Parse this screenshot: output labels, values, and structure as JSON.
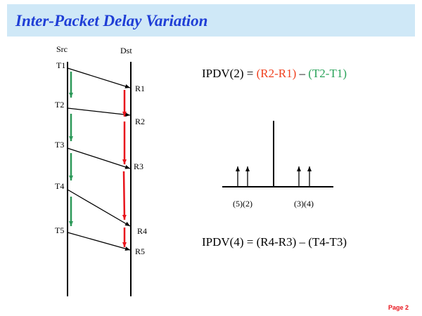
{
  "header": {
    "title": "Inter-Packet Delay Variation"
  },
  "diagram": {
    "src_label": "Src",
    "dst_label": "Dst",
    "send_labels": [
      "T1",
      "T2",
      "T3",
      "T4",
      "T5"
    ],
    "receive_labels": [
      "R1",
      "R2",
      "R3",
      "R4",
      "R5"
    ],
    "formula_top": [
      "IPDV(2) = ",
      "(R2-R1)",
      " – ",
      "(T2-T1)"
    ],
    "axis_labels": [
      "(5)(2)",
      "(3)(4)"
    ],
    "formula_bottom": "IPDV(4) = (R4-R3) – (T4-T3)"
  },
  "footer": {
    "page": "Page 2"
  }
}
